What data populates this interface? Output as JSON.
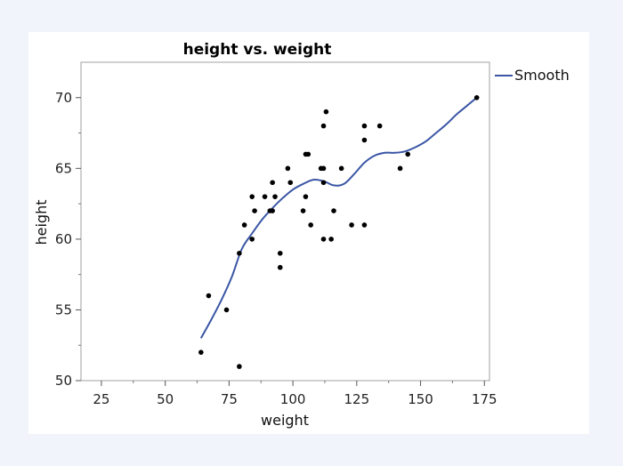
{
  "chart_data": {
    "type": "scatter",
    "title": "height vs. weight",
    "xlabel": "weight",
    "ylabel": "height",
    "xlim": [
      17,
      177
    ],
    "ylim": [
      50,
      72.5
    ],
    "xticks": [
      25,
      50,
      75,
      100,
      125,
      150,
      175
    ],
    "yticks": [
      50,
      55,
      60,
      65,
      70
    ],
    "legend": {
      "position": "top-right",
      "entries": [
        "Smooth"
      ]
    },
    "colors": {
      "smooth": "#3a56a5",
      "points": "#000000",
      "frame": "#a0a0a0"
    },
    "points": [
      {
        "x": 64,
        "y": 52
      },
      {
        "x": 67,
        "y": 56
      },
      {
        "x": 74,
        "y": 55
      },
      {
        "x": 79,
        "y": 59
      },
      {
        "x": 79,
        "y": 51
      },
      {
        "x": 81,
        "y": 61
      },
      {
        "x": 84,
        "y": 63
      },
      {
        "x": 84,
        "y": 60
      },
      {
        "x": 85,
        "y": 62
      },
      {
        "x": 89,
        "y": 63
      },
      {
        "x": 91,
        "y": 62
      },
      {
        "x": 92,
        "y": 64
      },
      {
        "x": 92,
        "y": 62
      },
      {
        "x": 93,
        "y": 63
      },
      {
        "x": 95,
        "y": 59
      },
      {
        "x": 95,
        "y": 58
      },
      {
        "x": 98,
        "y": 65
      },
      {
        "x": 99,
        "y": 64
      },
      {
        "x": 104,
        "y": 62
      },
      {
        "x": 105,
        "y": 66
      },
      {
        "x": 105,
        "y": 63
      },
      {
        "x": 106,
        "y": 66
      },
      {
        "x": 107,
        "y": 61
      },
      {
        "x": 111,
        "y": 65
      },
      {
        "x": 112,
        "y": 68
      },
      {
        "x": 112,
        "y": 65
      },
      {
        "x": 112,
        "y": 64
      },
      {
        "x": 112,
        "y": 60
      },
      {
        "x": 113,
        "y": 69
      },
      {
        "x": 115,
        "y": 60
      },
      {
        "x": 116,
        "y": 62
      },
      {
        "x": 119,
        "y": 65
      },
      {
        "x": 123,
        "y": 61
      },
      {
        "x": 128,
        "y": 68
      },
      {
        "x": 128,
        "y": 67
      },
      {
        "x": 128,
        "y": 61
      },
      {
        "x": 134,
        "y": 68
      },
      {
        "x": 142,
        "y": 65
      },
      {
        "x": 145,
        "y": 66
      },
      {
        "x": 172,
        "y": 70
      }
    ],
    "smooth": [
      {
        "x": 64,
        "y": 53.0
      },
      {
        "x": 68,
        "y": 54.3
      },
      {
        "x": 72,
        "y": 55.7
      },
      {
        "x": 76,
        "y": 57.3
      },
      {
        "x": 80,
        "y": 59.3
      },
      {
        "x": 84,
        "y": 60.4
      },
      {
        "x": 88,
        "y": 61.4
      },
      {
        "x": 92,
        "y": 62.2
      },
      {
        "x": 96,
        "y": 62.9
      },
      {
        "x": 100,
        "y": 63.5
      },
      {
        "x": 104,
        "y": 63.9
      },
      {
        "x": 108,
        "y": 64.2
      },
      {
        "x": 112,
        "y": 64.1
      },
      {
        "x": 116,
        "y": 63.8
      },
      {
        "x": 120,
        "y": 63.9
      },
      {
        "x": 124,
        "y": 64.6
      },
      {
        "x": 128,
        "y": 65.4
      },
      {
        "x": 132,
        "y": 65.9
      },
      {
        "x": 136,
        "y": 66.1
      },
      {
        "x": 140,
        "y": 66.1
      },
      {
        "x": 144,
        "y": 66.2
      },
      {
        "x": 148,
        "y": 66.5
      },
      {
        "x": 152,
        "y": 66.9
      },
      {
        "x": 156,
        "y": 67.5
      },
      {
        "x": 160,
        "y": 68.1
      },
      {
        "x": 164,
        "y": 68.8
      },
      {
        "x": 168,
        "y": 69.4
      },
      {
        "x": 172,
        "y": 70.0
      }
    ]
  }
}
